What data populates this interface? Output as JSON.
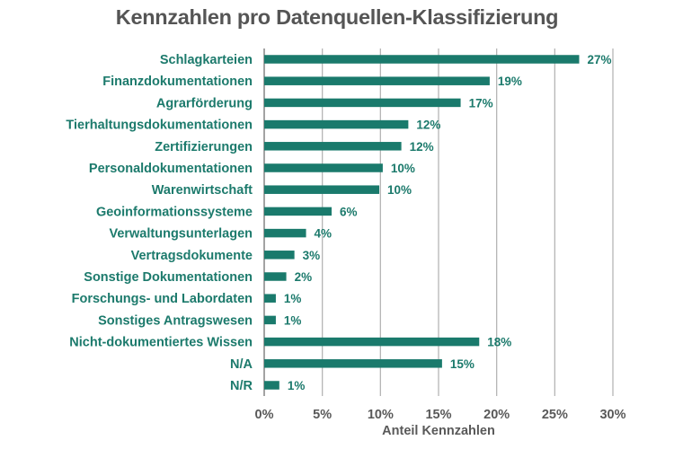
{
  "chart_data": {
    "type": "bar",
    "orientation": "horizontal",
    "title": "Kennzahlen pro Datenquellen-Klassifizierung",
    "xlabel": "Anteil Kennzahlen",
    "ylabel": "",
    "xlim": [
      0,
      30
    ],
    "xticks": [
      0,
      5,
      10,
      15,
      20,
      25,
      30
    ],
    "xtick_labels": [
      "0%",
      "5%",
      "10%",
      "15%",
      "20%",
      "25%",
      "30%"
    ],
    "grid": "vertical",
    "legend": "none",
    "bar_color": "#1a7a6c",
    "label_color": "#1c7a6c",
    "categories": [
      "Schlagkarteien",
      "Finanzdokumentationen",
      "Agrarförderung",
      "Tierhaltungsdokumentationen",
      "Zertifizierungen",
      "Personaldokumentationen",
      "Warenwirtschaft",
      "Geoinformationssysteme",
      "Verwaltungsunterlagen",
      "Vertragsdokumente",
      "Sonstige Dokumentationen",
      "Forschungs- und Labordaten",
      "Sonstiges Antragswesen",
      "Nicht-dokumentiertes Wissen",
      "N/A",
      "N/R"
    ],
    "values": [
      27.1,
      19.4,
      16.9,
      12.4,
      11.8,
      10.2,
      9.9,
      5.8,
      3.6,
      2.6,
      1.9,
      1.0,
      1.0,
      18.5,
      15.3,
      1.3
    ],
    "data_labels": [
      "27%",
      "19%",
      "17%",
      "12%",
      "12%",
      "10%",
      "10%",
      "6%",
      "4%",
      "3%",
      "2%",
      "1%",
      "1%",
      "18%",
      "15%",
      "1%"
    ]
  }
}
